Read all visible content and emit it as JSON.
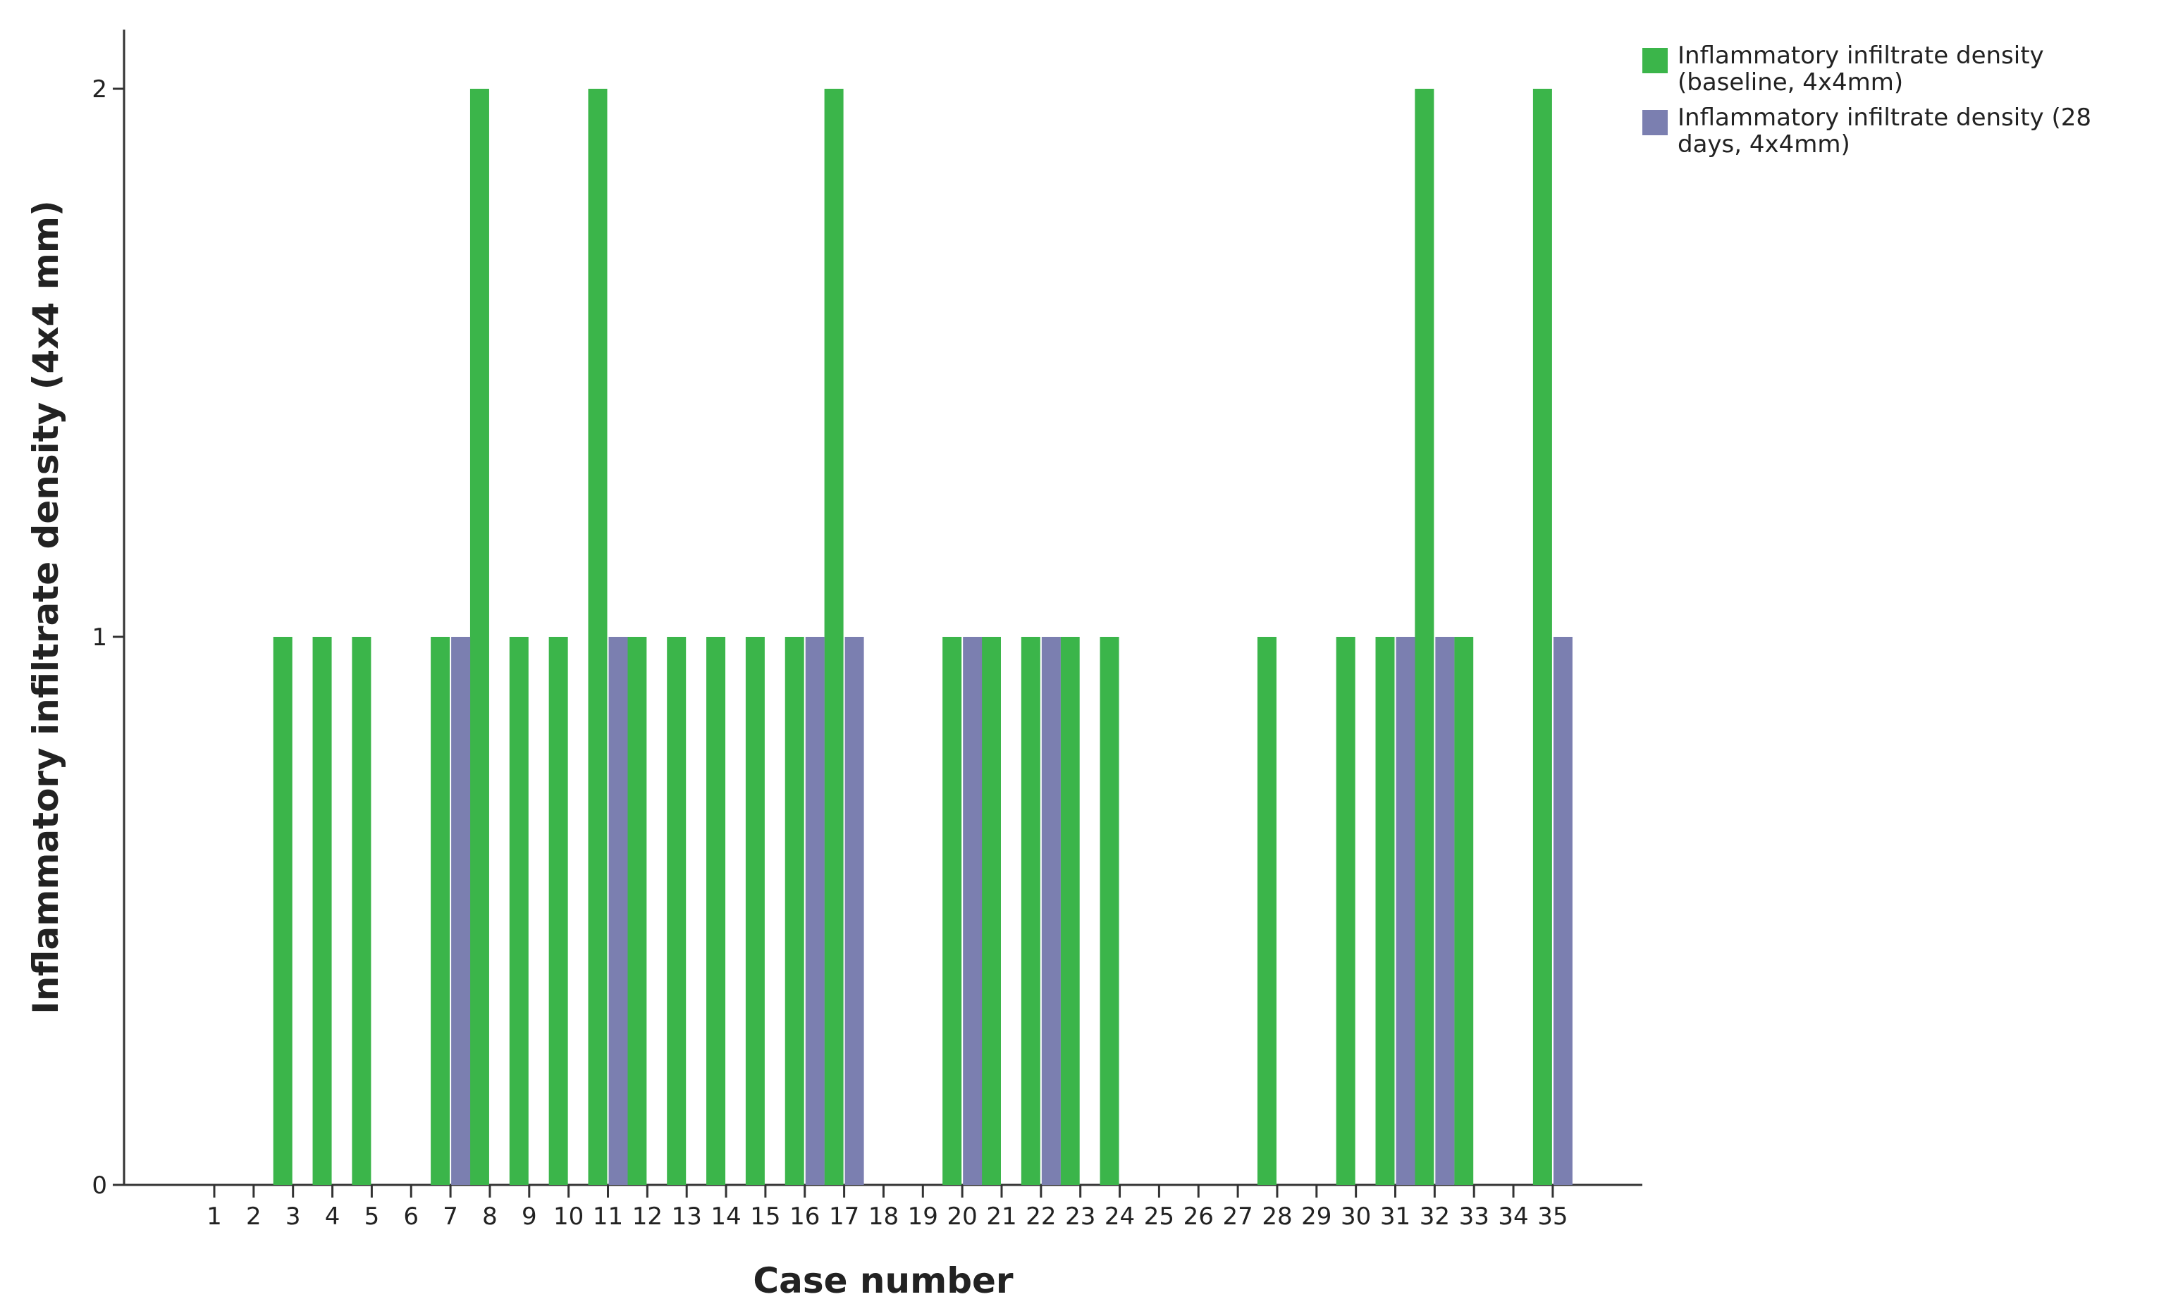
{
  "chart_data": {
    "type": "bar",
    "title": "",
    "xlabel": "Case number",
    "ylabel": "Inflammatory infiltrate density (4x4 mm)",
    "ylim": [
      0,
      2
    ],
    "yticks": [
      "0",
      "1",
      "2"
    ],
    "grid": false,
    "legend_position": "top-right",
    "categories": [
      "1",
      "2",
      "3",
      "4",
      "5",
      "6",
      "7",
      "8",
      "9",
      "10",
      "11",
      "12",
      "13",
      "14",
      "15",
      "16",
      "17",
      "18",
      "19",
      "20",
      "21",
      "22",
      "23",
      "24",
      "25",
      "26",
      "27",
      "28",
      "29",
      "30",
      "31",
      "32",
      "33",
      "34",
      "35"
    ],
    "series": [
      {
        "name": "Inflammatory infiltrate density (baseline, 4x4mm)",
        "legend_lines": [
          "Inflammatory infiltrate density",
          "(baseline, 4x4mm)"
        ],
        "color": "#3bb54a",
        "values": [
          0,
          0,
          1,
          1,
          1,
          0,
          1,
          2,
          1,
          1,
          2,
          1,
          1,
          1,
          1,
          1,
          2,
          0,
          0,
          1,
          1,
          1,
          1,
          1,
          0,
          0,
          0,
          1,
          0,
          1,
          1,
          2,
          1,
          0,
          2
        ]
      },
      {
        "name": "Inflammatory infiltrate density (28 days, 4x4mm)",
        "legend_lines": [
          "Inflammatory infiltrate density (28",
          "days, 4x4mm)"
        ],
        "color": "#7b7fb0",
        "values": [
          0,
          0,
          0,
          0,
          0,
          0,
          1,
          0,
          0,
          0,
          1,
          0,
          0,
          0,
          0,
          1,
          1,
          0,
          0,
          1,
          0,
          1,
          0,
          0,
          0,
          0,
          0,
          0,
          0,
          0,
          1,
          1,
          0,
          0,
          1
        ]
      }
    ]
  }
}
